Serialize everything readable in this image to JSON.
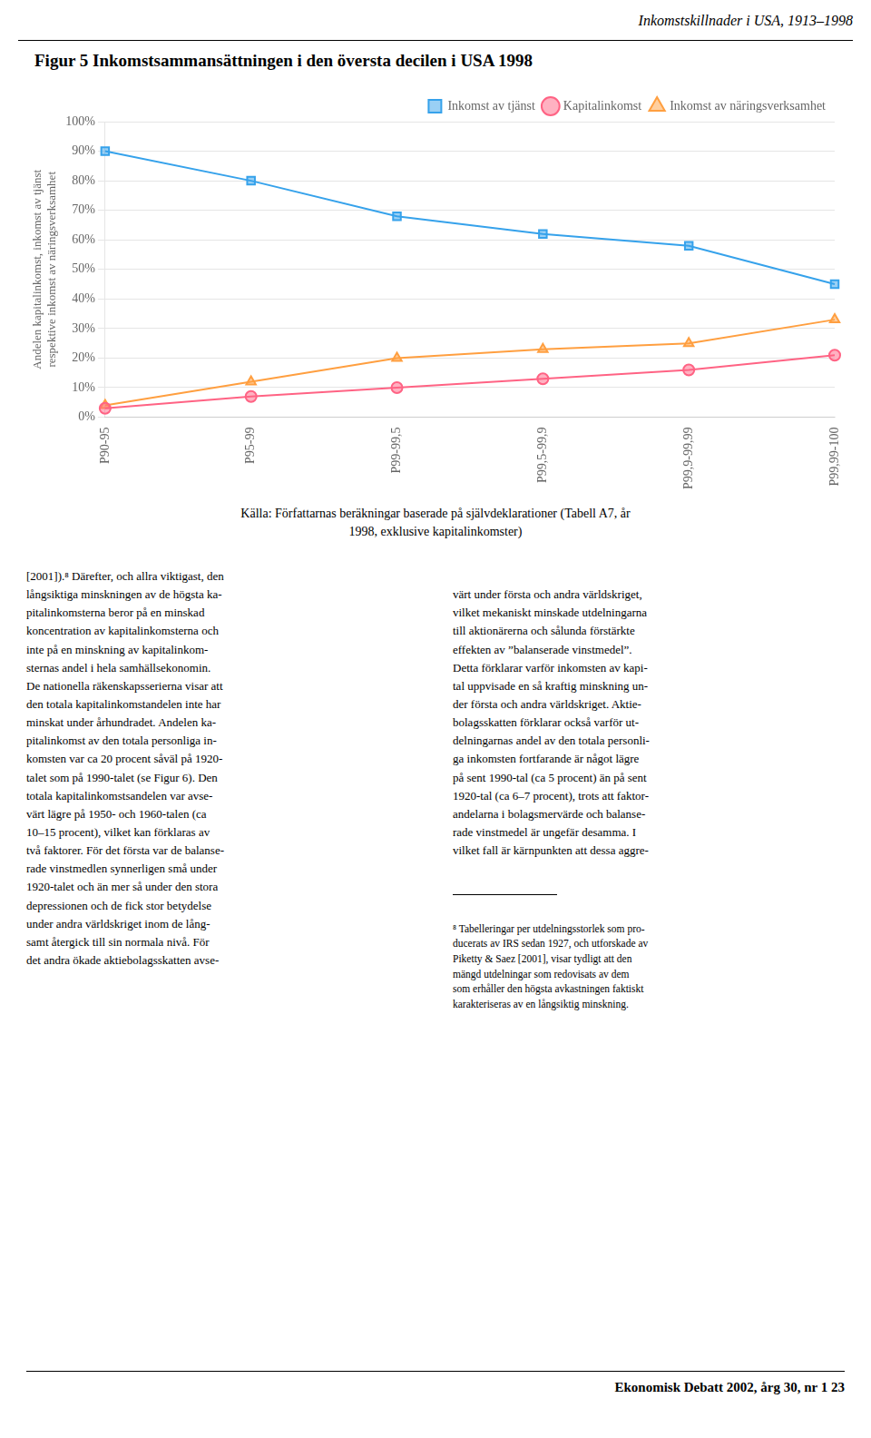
{
  "chart_data": {
    "type": "line",
    "title": "Figur 5 Inkomstsammansättningen i den översta decilen i USA 1998",
    "categories": [
      "P90-95",
      "P95-99",
      "P99-99,5",
      "P99,5-99,9",
      "P99,9-99,99",
      "P99,99-100"
    ],
    "series": [
      {
        "name": "Inkomst av tjänst",
        "values": [
          0.9,
          0.8,
          0.68,
          0.62,
          0.58,
          0.45
        ],
        "marker": "square"
      },
      {
        "name": "Kapitalinkomst",
        "values": [
          0.03,
          0.07,
          0.1,
          0.13,
          0.16,
          0.21
        ],
        "marker": "circle"
      },
      {
        "name": "Inkomst av näringsverksamhet",
        "values": [
          0.04,
          0.12,
          0.2,
          0.23,
          0.25,
          0.33
        ],
        "marker": "triangle"
      }
    ],
    "y_label": [
      "Andelen kapitalinkomst, inkomst av tjänst",
      "respektive inkomst av näringsverksamhet"
    ],
    "ylim": [
      0.0,
      1.0
    ],
    "yticks": [
      {
        "value": 0.0,
        "label": "0%"
      },
      {
        "value": 0.1,
        "label": "10%"
      },
      {
        "value": 0.2,
        "label": "20%"
      },
      {
        "value": 0.3,
        "label": "30%"
      },
      {
        "value": 0.4,
        "label": "40%"
      },
      {
        "value": 0.5,
        "label": "50%"
      },
      {
        "value": 0.6,
        "label": "60%"
      },
      {
        "value": 0.7,
        "label": "70%"
      },
      {
        "value": 0.8,
        "label": "80%"
      },
      {
        "value": 0.9,
        "label": "90%"
      },
      {
        "value": 1.0,
        "label": "100%"
      }
    ],
    "grid": true,
    "legend": "upper right"
  },
  "header": "Inkomstskillnader i  USA, 1913–1998",
  "source": [
    "Källa: Författarnas beräkningar baserade på självdeklarationer (Tabell A7,  år",
    "1998, exklusive kapitalinkomster)"
  ],
  "body_left": "[2001]).⁸ Därefter, och allra viktigast, den\nlångsiktiga minskningen av de högsta ka-\npitalinkomsterna beror på en minskad\nkoncentration av kapitalinkomsterna och\ninte på en minskning av kapitalinkom-\nsternas andel i hela samhällsekonomin.\nDe nationella räkenskapsserierna visar att\nden totala kapitalinkomstandelen inte har\nminskat under århundradet. Andelen ka-\npitalinkomst av den totala personliga in-\nkomsten var ca 20 procent såväl på 1920-\ntalet som på 1990-talet (se Figur 6). Den\ntotala kapitalinkomstsandelen var avse-\nvärt lägre på 1950- och 1960-talen (ca\n10–15 procent), vilket kan förklaras av\ntvå faktorer. För det första var de balanse-\nrade vinstmedlen synnerligen små under\n1920-talet och än mer så under den stora\ndepressionen och de fick stor betydelse\nunder andra världskriget inom de lång-\nsamt återgick till sin normala nivå. För\ndet andra ökade aktiebolagsskatten avse-",
  "body_right": "värt under första och andra världskriget,\nvilket mekaniskt minskade utdelningarna\ntill aktionärerna och sålunda förstärkte\neffekten av ”balanserade vinstmedel”.\nDetta förklarar varför inkomsten av kapi-\ntal uppvisade en så kraftig minskning un-\nder första och andra världskriget. Aktie-\nbolagsskatten förklarar också varför ut-\ndelningarnas andel av den totala personli-\nga inkomsten fortfarande är något lägre\npå sent 1990-tal (ca 5 procent) än på sent\n1920-tal (ca 6–7 procent), trots att faktor-\nandelarna i bolagsmervärde och balanse-\nrade vinstmedel är ungefär desamma. I\nvilket fall är kärnpunkten att dessa aggre-",
  "footnote": "⁸ Tabelleringar per utdelningsstorlek som pro-\nducerats av IRS sedan 1927, och utforskade av\nPiketty & Saez [2001], visar tydligt att den\nmängd utdelningar som redovisats av dem\nsom erhåller den högsta avkastningen faktiskt\nkarakteriseras av en långsiktig minskning.",
  "footer": "Ekonomisk Debatt 2002, årg 30, nr 1  23"
}
